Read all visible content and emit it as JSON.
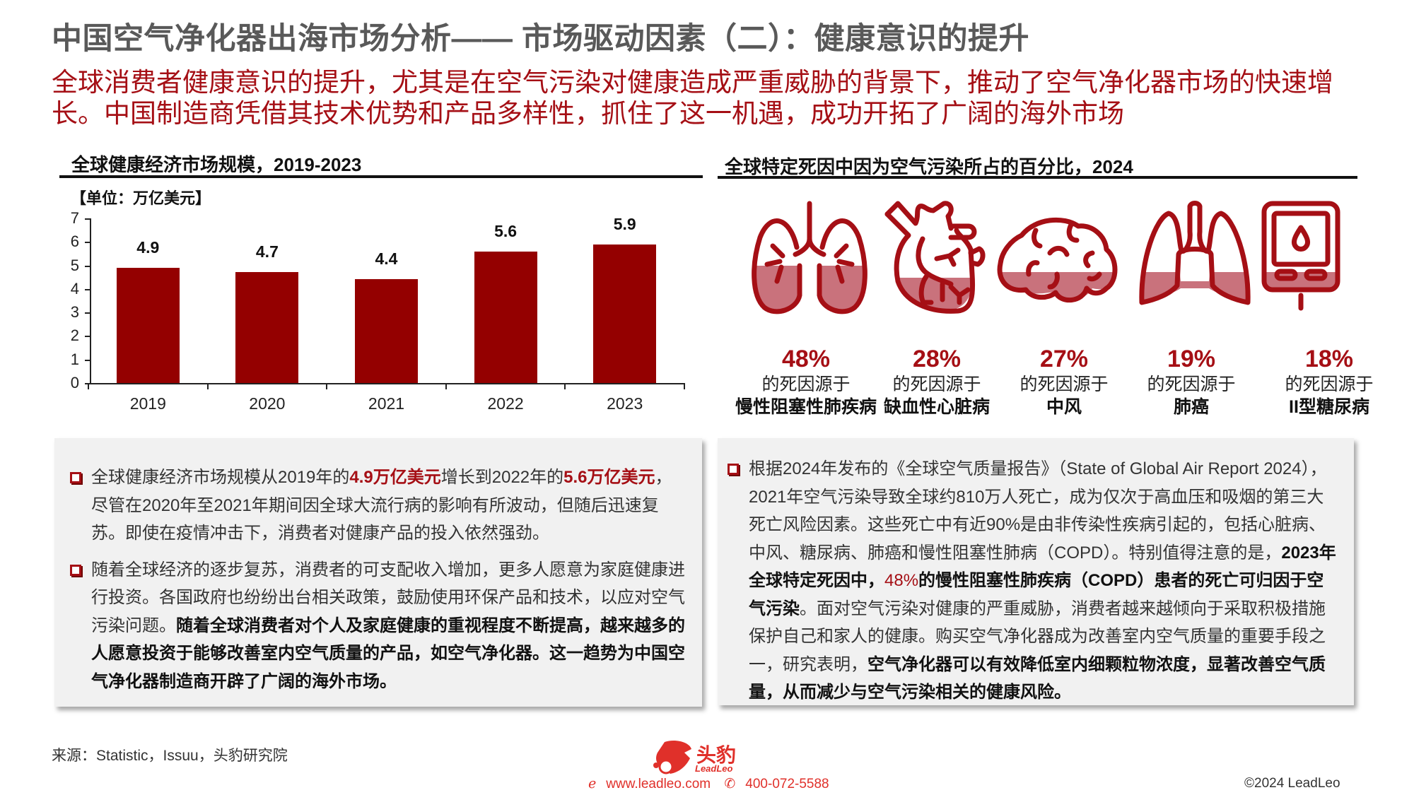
{
  "header": {
    "title": "中国空气净化器出海市场分析—— 市场驱动因素（二）：健康意识的提升",
    "subtitle": "全球消费者健康意识的提升，尤其是在空气污染对健康造成严重威胁的背景下，推动了空气净化器市场的快速增长。中国制造商凭借其技术优势和产品多样性，抓住了这一机遇，成功开拓了广阔的海外市场"
  },
  "left_panel": {
    "title": "全球健康经济市场规模，2019-2023",
    "unit": "【单位：万亿美元】"
  },
  "chart_data": {
    "type": "bar",
    "title": "全球健康经济市场规模，2019-2023",
    "unit": "万亿美元",
    "categories": [
      "2019",
      "2020",
      "2021",
      "2022",
      "2023"
    ],
    "values": [
      4.9,
      4.7,
      4.4,
      5.6,
      5.9
    ],
    "value_labels": [
      "4.9",
      "4.7",
      "4.4",
      "5.6",
      "5.9"
    ],
    "xlabel": "",
    "ylabel": "",
    "ylim": [
      0,
      7
    ],
    "yticks": [
      "0",
      "1",
      "2",
      "3",
      "4",
      "5",
      "6",
      "7"
    ],
    "bar_color": "#940000",
    "grid": false,
    "legend": null
  },
  "right_panel": {
    "title": "全球特定死因中因为空气污染所占的百分比，2024",
    "items": [
      {
        "icon": "lungs-bronchi-icon",
        "pct": "48%",
        "desc": "的死因源于",
        "disease": "慢性阻塞性肺疾病",
        "fill": 0.48
      },
      {
        "icon": "heart-icon",
        "pct": "28%",
        "desc": "的死因源于",
        "disease": "缺血性心脏病",
        "fill": 0.28
      },
      {
        "icon": "brain-icon",
        "pct": "27%",
        "desc": "的死因源于",
        "disease": "中风",
        "fill": 0.27
      },
      {
        "icon": "lungs-icon",
        "pct": "19%",
        "desc": "的死因源于",
        "disease": "肺癌",
        "fill": 0.19
      },
      {
        "icon": "glucose-meter-icon",
        "pct": "18%",
        "desc": "的死因源于",
        "disease": "II型糖尿病",
        "fill": 0.18
      }
    ]
  },
  "left_text": {
    "bullets": [
      {
        "parts": [
          {
            "t": "全球健康经济市场规模从2019年的",
            "s": "n"
          },
          {
            "t": "4.9万亿美元",
            "s": "r"
          },
          {
            "t": "增长到2022年的",
            "s": "n"
          },
          {
            "t": "5.6万亿美元",
            "s": "r"
          },
          {
            "t": "，尽管在2020年至2021年期间因全球大流行病的影响有所波动，但随后迅速复苏。即使在疫情冲击下，消费者对健康产品的投入依然强劲。",
            "s": "n"
          }
        ]
      },
      {
        "parts": [
          {
            "t": "随着全球经济的逐步复苏，消费者的可支配收入增加，更多人愿意为家庭健康进行投资。各国政府也纷纷出台相关政策，鼓励使用环保产品和技术，以应对空气污染问题。",
            "s": "n"
          },
          {
            "t": "随着全球消费者对个人及家庭健康的重视程度不断提高，越来越多的人愿意投资于能够改善室内空气质量的产品，如空气净化器。这一趋势为中国空气净化器制造商开辟了广阔的海外市场。",
            "s": "b"
          }
        ]
      }
    ]
  },
  "right_text": {
    "bullets": [
      {
        "parts": [
          {
            "t": "根据2024年发布的《全球空气质量报告》（State of Global Air Report 2024），2021年空气污染导致全球约810万人死亡，成为仅次于高血压和吸烟的第三大死亡风险因素。这些死亡中有近90%是由非传染性疾病引起的，包括心脏病、中风、糖尿病、肺癌和慢性阻塞性肺病（COPD）。特别值得注意的是，",
            "s": "n"
          },
          {
            "t": "2023年全球特定死因中，",
            "s": "b"
          },
          {
            "t": "48%",
            "s": "rn"
          },
          {
            "t": "的慢性阻塞性肺疾病（COPD）患者的死亡可归因于空气污染",
            "s": "b"
          },
          {
            "t": "。面对空气污染对健康的严重威胁，消费者越来越倾向于采取积极措施保护自己和家人的健康。购买空气净化器成为改善室内空气质量的重要手段之一，研究表明，",
            "s": "n"
          },
          {
            "t": "空气净化器可以有效降低室内细颗粒物浓度，显著改善空气质量，从而减少与空气污染相关的健康风险。",
            "s": "b"
          }
        ]
      }
    ]
  },
  "footer": {
    "source": "来源：Statistic，Issuu，头豹研究院",
    "brand_cn": "头豹",
    "brand_en": "LeadLeo",
    "website": "www.leadleo.com",
    "phone": "400-072-5588",
    "copyright": "©2024 LeadLeo"
  },
  "colors": {
    "accent": "#a50f15",
    "bar": "#940000",
    "icon_fill": "#c9727c",
    "title_gray": "#595959",
    "box_bg": "#f1f1f1",
    "brand": "#e0302a"
  }
}
